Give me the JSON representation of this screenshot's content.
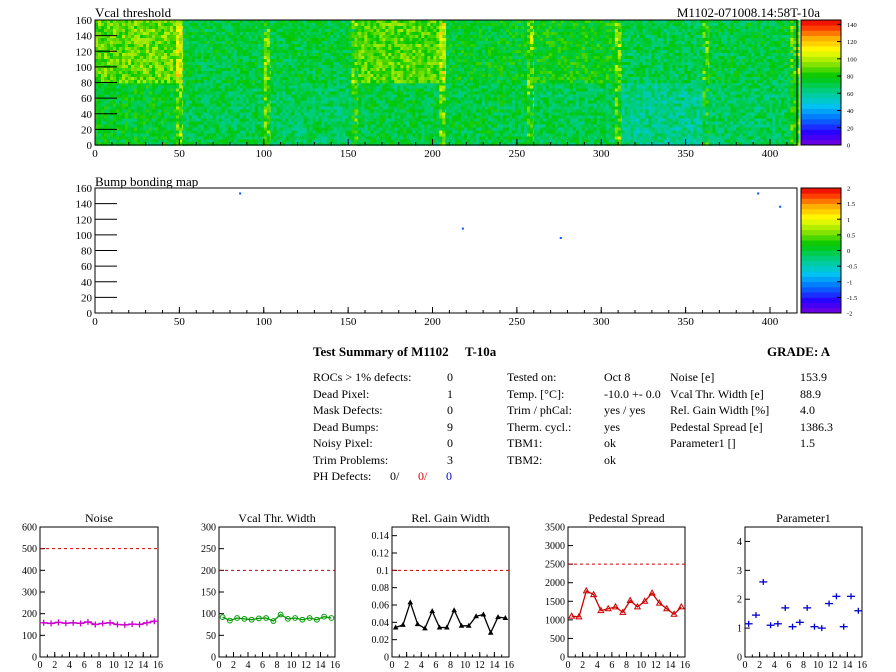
{
  "header": {
    "map_title": "Vcal threshold",
    "module_id": "M1102-071008.14:58T-10a"
  },
  "bump_map": {
    "title": "Bump bonding map"
  },
  "chart_data": [
    {
      "type": "heatmap",
      "title": "Vcal threshold",
      "xlim": [
        0,
        416
      ],
      "ylim": [
        0,
        160
      ],
      "x_ticks": [
        0,
        50,
        100,
        150,
        200,
        250,
        300,
        350,
        400
      ],
      "y_ticks": [
        0,
        20,
        40,
        60,
        80,
        100,
        120,
        140,
        160
      ],
      "z_range": [
        0,
        145
      ],
      "z_ticks": [
        0,
        20,
        40,
        60,
        80,
        100,
        120,
        140
      ],
      "roc_grid": {
        "columns": 8,
        "rows": 2
      },
      "roc_levels": [
        [
          75,
          70,
          68,
          72,
          72,
          70,
          62,
          68
        ],
        [
          90,
          72,
          72,
          88,
          75,
          78,
          70,
          72
        ]
      ]
    },
    {
      "type": "heatmap",
      "title": "Bump bonding map",
      "xlim": [
        0,
        416
      ],
      "ylim": [
        0,
        160
      ],
      "x_ticks": [
        0,
        50,
        100,
        150,
        200,
        250,
        300,
        350,
        400
      ],
      "y_ticks": [
        0,
        20,
        40,
        60,
        80,
        100,
        120,
        140,
        160
      ],
      "z_range": [
        -2,
        2
      ],
      "z_ticks": [
        -2,
        -1.5,
        -1,
        -0.5,
        0,
        0.5,
        1,
        1.5,
        2
      ],
      "points": [
        {
          "x": 86,
          "y": 153
        },
        {
          "x": 218,
          "y": 108
        },
        {
          "x": 276,
          "y": 96
        },
        {
          "x": 393,
          "y": 153
        },
        {
          "x": 406,
          "y": 136
        }
      ]
    },
    {
      "type": "line",
      "title": "Noise",
      "x": [
        0,
        1,
        2,
        3,
        4,
        5,
        6,
        7,
        8,
        9,
        10,
        11,
        12,
        13,
        14,
        15
      ],
      "xlim": [
        0,
        16
      ],
      "ylim": [
        0,
        600
      ],
      "x_ticks": [
        0,
        2,
        4,
        6,
        8,
        10,
        12,
        14,
        16
      ],
      "y_ticks": [
        0,
        100,
        200,
        300,
        400,
        500,
        600
      ],
      "limit": 500,
      "color": "#cc00cc",
      "marker": "cross",
      "values": [
        158,
        155,
        160,
        156,
        158,
        155,
        162,
        150,
        155,
        158,
        150,
        148,
        152,
        150,
        158,
        165
      ]
    },
    {
      "type": "line",
      "title": "Vcal Thr. Width",
      "x": [
        0,
        1,
        2,
        3,
        4,
        5,
        6,
        7,
        8,
        9,
        10,
        11,
        12,
        13,
        14,
        15
      ],
      "xlim": [
        0,
        16
      ],
      "ylim": [
        0,
        300
      ],
      "x_ticks": [
        0,
        2,
        4,
        6,
        8,
        10,
        12,
        14,
        16
      ],
      "y_ticks": [
        0,
        50,
        100,
        150,
        200,
        250,
        300
      ],
      "limit": 200,
      "color": "#009900",
      "marker": "circle",
      "values": [
        92,
        84,
        90,
        88,
        86,
        89,
        90,
        83,
        98,
        88,
        90,
        86,
        90,
        86,
        93,
        90
      ]
    },
    {
      "type": "line",
      "title": "Rel. Gain Width",
      "x": [
        0,
        1,
        2,
        3,
        4,
        5,
        6,
        7,
        8,
        9,
        10,
        11,
        12,
        13,
        14,
        15
      ],
      "xlim": [
        0,
        16
      ],
      "ylim": [
        0,
        0.15
      ],
      "x_ticks": [
        0,
        2,
        4,
        6,
        8,
        10,
        12,
        14,
        16
      ],
      "y_ticks": [
        0,
        0.02,
        0.04,
        0.06,
        0.08,
        0.1,
        0.12,
        0.14
      ],
      "limit": 0.1,
      "color": "#000000",
      "marker": "triangle",
      "values": [
        0.034,
        0.037,
        0.063,
        0.038,
        0.033,
        0.053,
        0.034,
        0.034,
        0.054,
        0.036,
        0.036,
        0.047,
        0.049,
        0.028,
        0.046,
        0.045
      ]
    },
    {
      "type": "line",
      "title": "Pedestal Spread",
      "x": [
        0,
        1,
        2,
        3,
        4,
        5,
        6,
        7,
        8,
        9,
        10,
        11,
        12,
        13,
        14,
        15
      ],
      "xlim": [
        0,
        16
      ],
      "ylim": [
        0,
        3500
      ],
      "x_ticks": [
        0,
        2,
        4,
        6,
        8,
        10,
        12,
        14,
        16
      ],
      "y_ticks": [
        0,
        500,
        1000,
        1500,
        2000,
        2500,
        3000,
        3500
      ],
      "limit": 2500,
      "color": "#cc0000",
      "marker": "triangle-open",
      "values": [
        1100,
        1080,
        1780,
        1680,
        1250,
        1300,
        1350,
        1200,
        1520,
        1350,
        1500,
        1720,
        1450,
        1300,
        1150,
        1350
      ]
    },
    {
      "type": "scatter",
      "title": "Parameter1",
      "x": [
        0,
        1,
        2,
        3,
        4,
        5,
        6,
        7,
        8,
        9,
        10,
        11,
        12,
        13,
        14,
        15
      ],
      "xlim": [
        0,
        16
      ],
      "ylim": [
        0,
        4.5
      ],
      "x_ticks": [
        0,
        2,
        4,
        6,
        8,
        10,
        12,
        14,
        16
      ],
      "y_ticks": [
        0,
        1,
        2,
        3,
        4
      ],
      "color": "#0000cc",
      "marker": "cross",
      "values": [
        1.15,
        1.45,
        2.6,
        1.1,
        1.15,
        1.7,
        1.05,
        1.2,
        1.7,
        1.05,
        1.0,
        1.85,
        2.1,
        1.05,
        2.1,
        1.6
      ]
    }
  ],
  "summary": {
    "title": "Test Summary of M1102",
    "temp": "T-10a",
    "grade": "GRADE:  A",
    "left": [
      {
        "label": "ROCs > 1% defects:",
        "value": "0"
      },
      {
        "label": "Dead Pixel:",
        "value": "1"
      },
      {
        "label": "Mask Defects:",
        "value": "0"
      },
      {
        "label": "Dead Bumps:",
        "value": "9"
      },
      {
        "label": "Noisy Pixel:",
        "value": "0"
      },
      {
        "label": "Trim Problems:",
        "value": "3"
      }
    ],
    "ph_defects": {
      "label": "PH Defects:",
      "v1": "0/",
      "v2": "0/",
      "v3": "0"
    },
    "middle": [
      {
        "label": "Tested on:",
        "value": "Oct 8"
      },
      {
        "label": "Temp. [°C]:",
        "value": "-10.0 +- 0.0"
      },
      {
        "label": "Trim / phCal:",
        "value": "yes / yes"
      },
      {
        "label": "Therm. cycl.:",
        "value": "yes"
      },
      {
        "label": "TBM1:",
        "value": "ok"
      },
      {
        "label": "TBM2:",
        "value": "ok"
      }
    ],
    "right": [
      {
        "label": "Noise [e]",
        "value": "153.9"
      },
      {
        "label": "Vcal Thr. Width [e]",
        "value": "88.9"
      },
      {
        "label": "Rel. Gain Width [%]",
        "value": "4.0"
      },
      {
        "label": "Pedestal Spread [e]",
        "value": "1386.3"
      },
      {
        "label": "Parameter1 []",
        "value": "1.5"
      }
    ]
  }
}
